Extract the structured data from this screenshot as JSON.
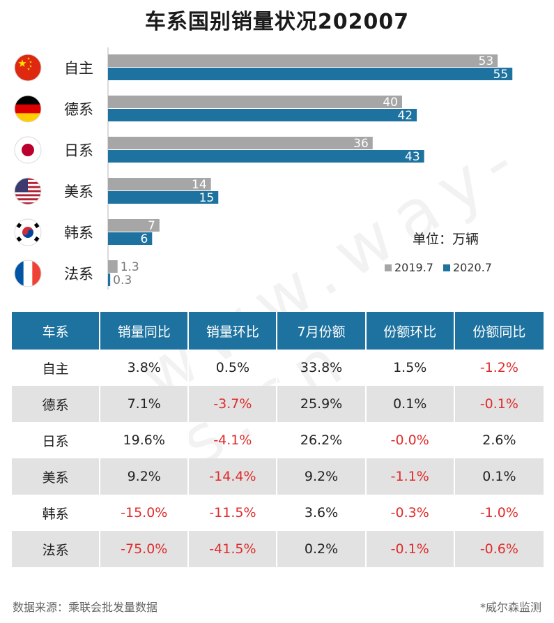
{
  "title": "车系国别销量状况202007",
  "unit_label": "单位：万辆",
  "watermark": "www.way-s.cn",
  "colors": {
    "series_2019": "#a6a6a6",
    "series_2020": "#1d72a0",
    "negative": "#e02b2b"
  },
  "chart_data": {
    "type": "bar",
    "orientation": "horizontal",
    "title": "车系国别销量状况202007",
    "categories": [
      "自主",
      "德系",
      "日系",
      "美系",
      "韩系",
      "法系"
    ],
    "flags": [
      "china-flag-icon",
      "germany-flag-icon",
      "japan-flag-icon",
      "usa-flag-icon",
      "korea-flag-icon",
      "france-flag-icon"
    ],
    "series": [
      {
        "name": "2019.7",
        "values": [
          53,
          40,
          36,
          14,
          7,
          1.3
        ],
        "labels": [
          "53",
          "40",
          "36",
          "14",
          "7",
          "1.3"
        ]
      },
      {
        "name": "2020.7",
        "values": [
          55,
          42,
          43,
          15,
          6,
          0.3
        ],
        "labels": [
          "55",
          "42",
          "43",
          "15",
          "6",
          "0.3"
        ]
      }
    ],
    "unit": "万辆",
    "xlim": [
      0,
      60
    ],
    "legend": "bottom-right"
  },
  "table": {
    "headers": [
      "车系",
      "销量同比",
      "销量环比",
      "7月份额",
      "份额环比",
      "份额同比"
    ],
    "rows": [
      [
        "自主",
        "3.8%",
        "0.5%",
        "33.8%",
        "1.5%",
        "-1.2%"
      ],
      [
        "德系",
        "7.1%",
        "-3.7%",
        "25.9%",
        "0.1%",
        "-0.1%"
      ],
      [
        "日系",
        "19.6%",
        "-4.1%",
        "26.2%",
        "-0.0%",
        "2.6%"
      ],
      [
        "美系",
        "9.2%",
        "-14.4%",
        "9.2%",
        "-1.1%",
        "0.1%"
      ],
      [
        "韩系",
        "-15.0%",
        "-11.5%",
        "3.6%",
        "-0.3%",
        "-1.0%"
      ],
      [
        "法系",
        "-75.0%",
        "-41.5%",
        "0.2%",
        "-0.1%",
        "-0.6%"
      ]
    ]
  },
  "footer": {
    "source": "数据来源：乘联会批发量数据",
    "credit": "*威尔森监测"
  }
}
